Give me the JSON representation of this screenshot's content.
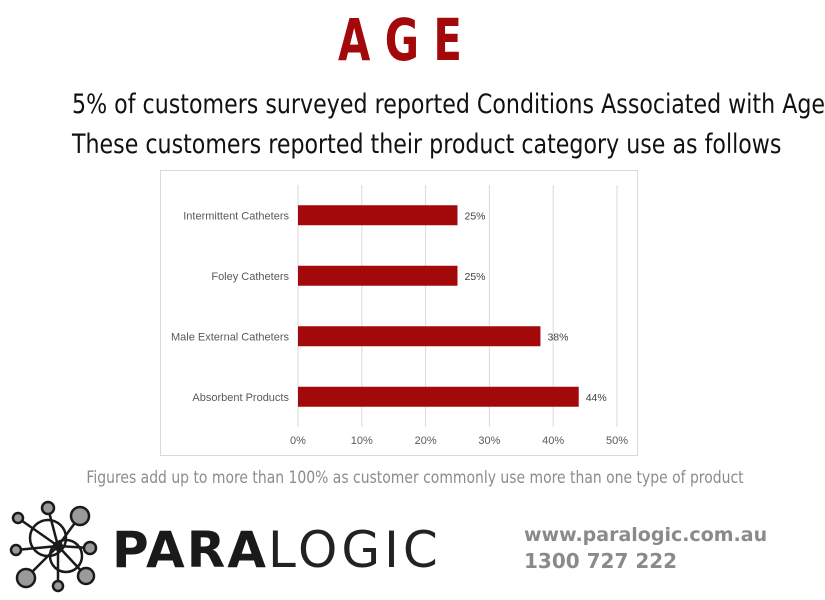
{
  "header": {
    "title": "AGE",
    "subtitle_1": "5% of customers surveyed reported Conditions Associated with Age",
    "subtitle_2": "These customers reported their product category use as follows"
  },
  "chart_data": {
    "type": "bar",
    "orientation": "horizontal",
    "categories": [
      "Intermittent Catheters",
      "Foley Catheters",
      "Male External Catheters",
      "Absorbent Products"
    ],
    "values": [
      25,
      25,
      38,
      44
    ],
    "data_labels": [
      "25%",
      "25%",
      "38%",
      "44%"
    ],
    "x_ticks": [
      "0%",
      "10%",
      "20%",
      "30%",
      "40%",
      "50%"
    ],
    "xlim": [
      0,
      50
    ],
    "grid": true,
    "legend": "none",
    "bar_color": "#a3080b"
  },
  "footnote": "Figures add up to more than 100% as customer commonly use more than one type of product",
  "brand": {
    "name_bold": "PARA",
    "name_light": "LOGIC",
    "website": "www.paralogic.com.au",
    "phone": "1300 727 222"
  },
  "colors": {
    "title": "#a3080b",
    "bar": "#a3080b",
    "contact": "#8a8a8a",
    "footnote": "#8c8c8c"
  }
}
